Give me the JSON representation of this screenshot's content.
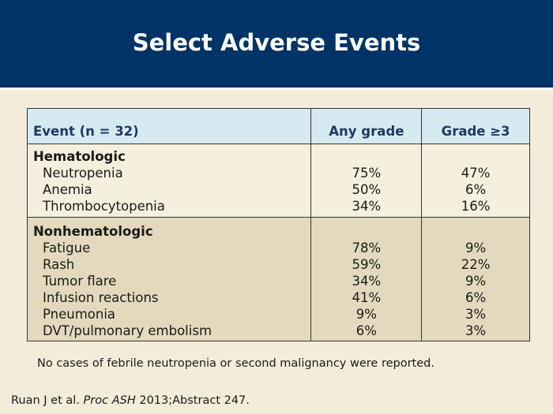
{
  "slide": {
    "title": "Select Adverse Events",
    "colors": {
      "header_bg": "#003366",
      "table_header_bg": "#d6eaf2",
      "table_header_text": "#1f3864",
      "nonhem_bg": "#e3d9bd"
    }
  },
  "table": {
    "headers": [
      "Event (n = 32)",
      "Any grade",
      "Grade ≥3"
    ],
    "groups": [
      {
        "label": "Hematologic",
        "rows": [
          {
            "event": "Neutropenia",
            "any": "75%",
            "grade3": "47%"
          },
          {
            "event": "Anemia",
            "any": "50%",
            "grade3": "6%"
          },
          {
            "event": "Thrombocytopenia",
            "any": "34%",
            "grade3": "16%"
          }
        ]
      },
      {
        "label": "Nonhematologic",
        "rows": [
          {
            "event": "Fatigue",
            "any": "78%",
            "grade3": "9%"
          },
          {
            "event": "Rash",
            "any": "59%",
            "grade3": "22%"
          },
          {
            "event": "Tumor flare",
            "any": "34%",
            "grade3": "9%"
          },
          {
            "event": "Infusion reactions",
            "any": "41%",
            "grade3": "6%"
          },
          {
            "event": "Pneumonia",
            "any": "9%",
            "grade3": "3%"
          },
          {
            "event": "DVT/pulmonary embolism",
            "any": "6%",
            "grade3": "3%"
          }
        ]
      }
    ]
  },
  "note": "No cases of febrile neutropenia or second malignancy were reported.",
  "citation": {
    "authors": "Ruan J et al.",
    "journal": "Proc ASH",
    "detail": "2013;Abstract 247."
  }
}
